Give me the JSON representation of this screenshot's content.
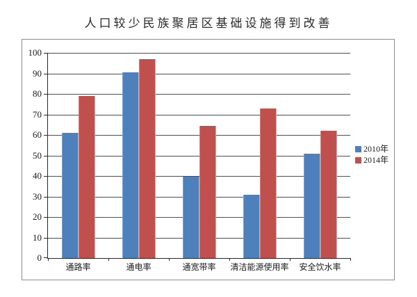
{
  "title": "人口较少民族聚居区基础设施得到改善",
  "legend": {
    "items": [
      {
        "label": "2010年",
        "color": "#4E80BC"
      },
      {
        "label": "2014年",
        "color": "#C0504D"
      }
    ]
  },
  "chart_data": {
    "type": "bar",
    "title": "人口较少民族聚居区基础设施得到改善",
    "categories": [
      "通路率",
      "通电率",
      "通宽带率",
      "清洁能源使用率",
      "安全饮水率"
    ],
    "series": [
      {
        "name": "2010年",
        "color": "#4E80BC",
        "values": [
          61,
          90.5,
          39.5,
          31,
          51
        ]
      },
      {
        "name": "2014年",
        "color": "#C0504D",
        "values": [
          79,
          97,
          64.5,
          73,
          62
        ]
      }
    ],
    "ylim": [
      0,
      100
    ],
    "yticks": [
      0,
      10,
      20,
      30,
      40,
      50,
      60,
      70,
      80,
      90,
      100
    ],
    "grid": true,
    "legend_position": "right"
  },
  "colors": {
    "bar_2010": "#4E80BC",
    "bar_2014": "#C0504D",
    "gridline": "#4d4d4d",
    "axis": "#262626",
    "frame_border": "#8c8c8c",
    "text": "#1a1a1a",
    "background": "#ffffff"
  }
}
